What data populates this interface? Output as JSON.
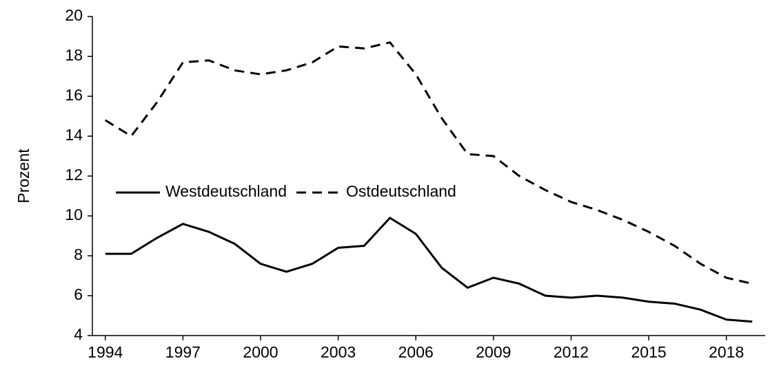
{
  "chart_data": {
    "type": "line",
    "y_label": "Prozent",
    "x": [
      1994,
      1995,
      1996,
      1997,
      1998,
      1999,
      2000,
      2001,
      2002,
      2003,
      2004,
      2005,
      2006,
      2007,
      2008,
      2009,
      2010,
      2011,
      2012,
      2013,
      2014,
      2015,
      2016,
      2017,
      2018,
      2019
    ],
    "series": [
      {
        "name": "Westdeutschland",
        "color": "#000000",
        "dash": "solid",
        "values": [
          8.1,
          8.1,
          8.9,
          9.6,
          9.2,
          8.6,
          7.6,
          7.2,
          7.6,
          8.4,
          8.5,
          9.9,
          9.1,
          7.4,
          6.4,
          6.9,
          6.6,
          6.0,
          5.9,
          6.0,
          5.9,
          5.7,
          5.6,
          5.3,
          4.8,
          4.7
        ]
      },
      {
        "name": "Ostdeutschland",
        "color": "#000000",
        "dash": "dashed",
        "values": [
          14.8,
          14.0,
          15.7,
          17.7,
          17.8,
          17.3,
          17.1,
          17.3,
          17.7,
          18.5,
          18.4,
          18.7,
          17.1,
          14.9,
          13.1,
          13.0,
          12.0,
          11.3,
          10.7,
          10.3,
          9.8,
          9.2,
          8.5,
          7.6,
          6.9,
          6.6
        ]
      }
    ],
    "xlim": [
      1993.5,
      2019.5
    ],
    "xticks": [
      1994,
      1997,
      2000,
      2003,
      2006,
      2009,
      2012,
      2015,
      2018
    ],
    "ylim": [
      4,
      20
    ],
    "yticks": [
      4,
      6,
      8,
      10,
      12,
      14,
      16,
      18,
      20
    ],
    "grid": false,
    "legend": "center-left"
  }
}
